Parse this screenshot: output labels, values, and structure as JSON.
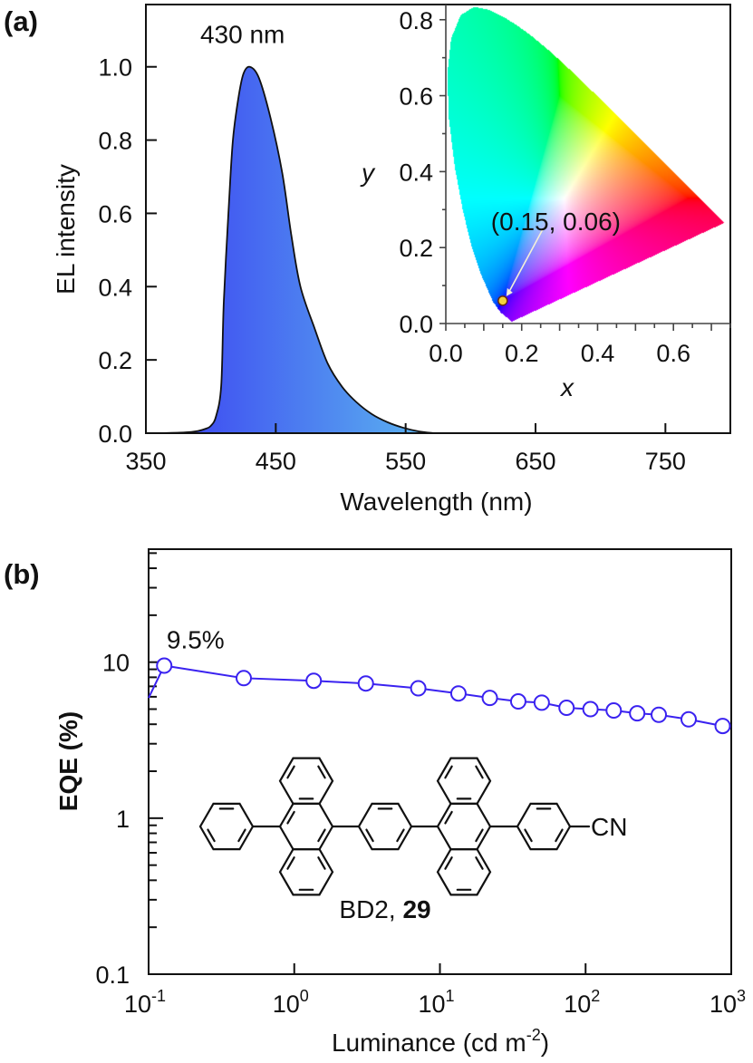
{
  "figure": {
    "panel_a_label": "(a)",
    "panel_b_label": "(b)"
  },
  "chart_data": [
    {
      "type": "area",
      "title": "",
      "xlabel": "Wavelength (nm)",
      "ylabel": "EL intensity",
      "xlim": [
        350,
        800
      ],
      "ylim": [
        0,
        1.17
      ],
      "xticks": [
        350,
        450,
        550,
        650,
        750
      ],
      "xtick_labels": [
        "350",
        "450",
        "550",
        "650",
        "750"
      ],
      "yticks": [
        0,
        0.2,
        0.4,
        0.6,
        0.8,
        1.0
      ],
      "ytick_labels": [
        "0.0",
        "0.2",
        "0.4",
        "0.6",
        "0.8",
        "1.0"
      ],
      "grid": false,
      "series": [
        {
          "name": "EL spectrum",
          "x": [
            360,
            380,
            390,
            396,
            400,
            404,
            408,
            410,
            414,
            417,
            421,
            425,
            430,
            437,
            446,
            455,
            462,
            469,
            480,
            490,
            501,
            512,
            524,
            536,
            548,
            560,
            572
          ],
          "y": [
            0,
            0.002,
            0.006,
            0.012,
            0.02,
            0.046,
            0.13,
            0.36,
            0.63,
            0.8,
            0.91,
            0.98,
            1.0,
            0.97,
            0.86,
            0.71,
            0.54,
            0.4,
            0.285,
            0.19,
            0.127,
            0.085,
            0.052,
            0.03,
            0.015,
            0.005,
            0
          ]
        }
      ],
      "annotations": [
        {
          "text": "430 nm",
          "x": 430,
          "y": 1.09
        }
      ],
      "colors": {
        "fill_start": "#3b40f2",
        "fill_end": "#5cb6ef",
        "stroke": "#111111"
      }
    },
    {
      "type": "scatter",
      "title": "",
      "xlabel": "x",
      "ylabel": "y",
      "xlim": [
        0,
        0.75
      ],
      "ylim": [
        0,
        0.84
      ],
      "xticks": [
        0,
        0.2,
        0.4,
        0.6
      ],
      "xtick_labels": [
        "0.0",
        "0.2",
        "0.4",
        "0.6"
      ],
      "yticks": [
        0,
        0.2,
        0.4,
        0.6,
        0.8
      ],
      "ytick_labels": [
        "0.0",
        "0.2",
        "0.4",
        "0.6",
        "0.8"
      ],
      "points": [
        {
          "x": 0.15,
          "y": 0.06
        }
      ],
      "annotations": [
        {
          "text": "(0.15, 0.06)",
          "x": 0.29,
          "y": 0.27
        }
      ],
      "colors": {
        "point_fill": "#f3d43c",
        "point_stroke": "#6b2a10",
        "arrow": "#f4f0d8"
      }
    },
    {
      "type": "line",
      "title": "",
      "xlabel": "Luminance (cd m",
      "xlabel_sup": "-2",
      "xlabel_end": ")",
      "ylabel": "EQE (%)",
      "xscale": "log",
      "yscale": "log",
      "xlim": [
        0.1,
        1000
      ],
      "ylim": [
        0.1,
        53
      ],
      "xticks": [
        0.1,
        1,
        10,
        100,
        1000
      ],
      "xtick_labels": [
        {
          "base": "10",
          "exp": "-1"
        },
        {
          "base": "10",
          "exp": "0"
        },
        {
          "base": "10",
          "exp": "1"
        },
        {
          "base": "10",
          "exp": "2"
        },
        {
          "base": "10",
          "exp": "3"
        }
      ],
      "yticks": [
        0.1,
        1,
        10
      ],
      "ytick_labels": [
        "0.1",
        "1",
        "10"
      ],
      "clipped_start": {
        "x": 0.1,
        "y": 5.9
      },
      "series": [
        {
          "name": "BD2 (29)",
          "x": [
            0.128,
            0.45,
            1.36,
            3.1,
            7.1,
            13.4,
            22,
            34.5,
            50,
            74,
            108,
            156,
            226,
            318,
            510,
            873
          ],
          "y": [
            9.5,
            7.9,
            7.6,
            7.3,
            6.8,
            6.3,
            5.9,
            5.6,
            5.5,
            5.1,
            5.0,
            4.9,
            4.7,
            4.6,
            4.3,
            3.9
          ]
        }
      ],
      "annotations": [
        {
          "text": "9.5%",
          "x": 0.21,
          "y": 14
        }
      ],
      "molecule": {
        "substituent": "CN",
        "name": "BD2, ",
        "number": "29"
      },
      "colors": {
        "line": "#3a22f0",
        "marker_fill": "#ffffff"
      }
    }
  ]
}
